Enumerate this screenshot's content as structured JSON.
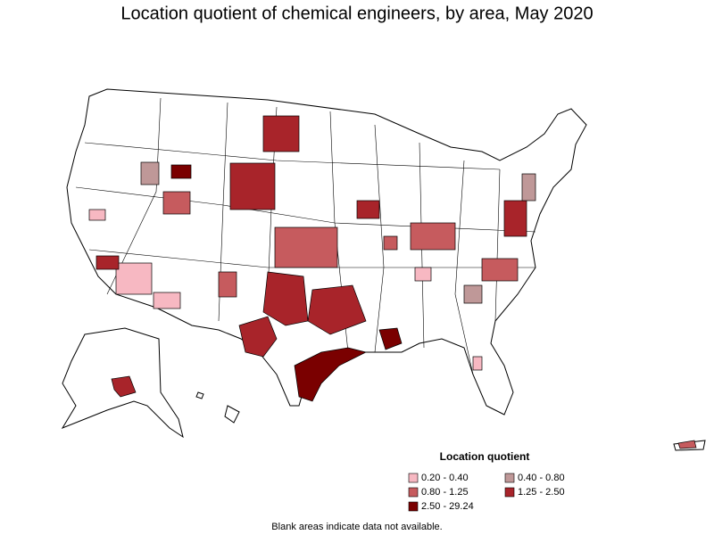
{
  "title": "Location quotient of chemical engineers, by area, May 2020",
  "legend": {
    "title": "Location quotient",
    "items": [
      {
        "label": "0.20 - 0.40",
        "color": "#f7b8c2"
      },
      {
        "label": "0.40 - 0.80",
        "color": "#bf9898"
      },
      {
        "label": "0.80 - 1.25",
        "color": "#c65b5e"
      },
      {
        "label": "1.25 - 2.50",
        "color": "#a8242a"
      },
      {
        "label": "2.50 - 29.24",
        "color": "#7a0000"
      }
    ]
  },
  "footnote": "Blank areas indicate data not available."
}
